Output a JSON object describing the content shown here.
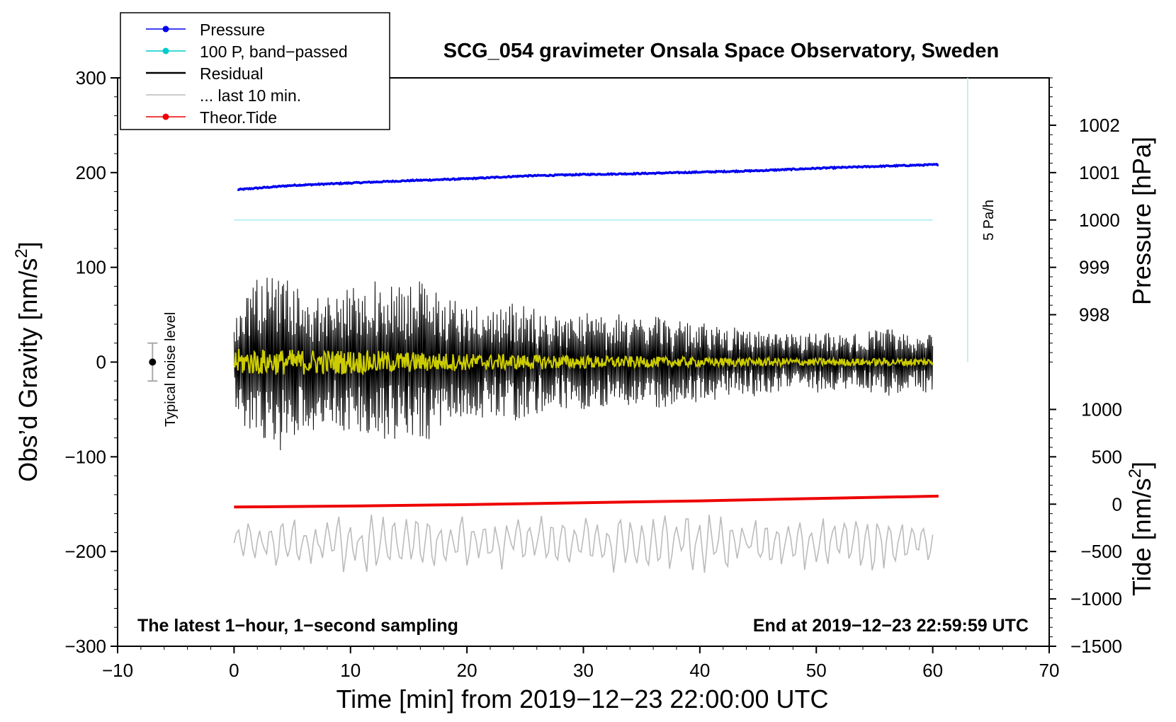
{
  "chart_data": {
    "type": "line",
    "title": "SCG_054 gravimeter Onsala Space Observatory, Sweden",
    "xlabel": "Time [min] from 2019−12−23 22:00:00 UTC",
    "ylabel": "Obs’d Gravity [nm/s",
    "ylabel_sup": "2",
    "ylabel_close": "]",
    "pressure_axis_label": "Pressure [hPa]",
    "tide_axis_label": "Tide [nm/s",
    "tide_axis_sup": "2",
    "tide_axis_close": "]",
    "xlim": [
      -10,
      70
    ],
    "ylim": [
      -300,
      300
    ],
    "x_ticks": [
      -10,
      0,
      10,
      20,
      30,
      40,
      50,
      60,
      70
    ],
    "x_tick_labels": [
      "−10",
      "0",
      "10",
      "20",
      "30",
      "40",
      "50",
      "60",
      "70"
    ],
    "y_ticks": [
      300,
      200,
      100,
      0,
      -100,
      -200,
      -300
    ],
    "y_tick_labels": [
      "300",
      "200",
      "100",
      "0",
      "−100",
      "−200",
      "−300"
    ],
    "pressure_ticks": [
      1002,
      1001,
      1000,
      999,
      998
    ],
    "pressure_tick_labels": [
      "1002",
      "1001",
      "1000",
      "999",
      "998"
    ],
    "pressure_axis_map": {
      "ref_value": 1000,
      "ref_gravity": 150,
      "gravity_per_hpa": 50
    },
    "tide_ticks": [
      1000,
      500,
      0,
      -500,
      -1000,
      -1500
    ],
    "tide_tick_labels": [
      "1000",
      "500",
      "0",
      "−500",
      "−1000",
      "−1500"
    ],
    "tide_axis_map": {
      "ref_value": 0,
      "ref_gravity": -150,
      "gravity_per_nms2": 0.1
    },
    "bottom_left_note": "The latest 1−hour, 1−second sampling",
    "bottom_right_note": "End at 2019−12−23 22:59:59 UTC",
    "noise_label": "Typical noise level",
    "noise_marker": {
      "x": -7,
      "y": 0,
      "err": 20
    },
    "scale_bar": {
      "label": "5 Pa/h",
      "x": 63,
      "y_from": 0,
      "y_to": 300
    },
    "legend": {
      "position": "top-left",
      "entries": [
        {
          "label": "Pressure",
          "color": "#0000ee",
          "marker": true
        },
        {
          "label": "100 P, band−passed",
          "color": "#00cccc",
          "marker": true
        },
        {
          "label": "Residual",
          "color": "#000000",
          "marker": false
        },
        {
          "label": "... last 10 min.",
          "color": "#bbbbbb",
          "marker": false
        },
        {
          "label": "Theor.Tide",
          "color": "#ee0000",
          "marker": true
        }
      ]
    },
    "series": [
      {
        "name": "Pressure",
        "color": "#0000ee",
        "y_axis": "pressure_hPa",
        "x": [
          0.3,
          5,
          10,
          15,
          20,
          25,
          30,
          35,
          40,
          45,
          50,
          55,
          60.5
        ],
        "values": [
          1000.64,
          1000.73,
          1000.78,
          1000.83,
          1000.87,
          1000.93,
          1000.96,
          1000.98,
          1001.01,
          1001.04,
          1001.09,
          1001.13,
          1001.17
        ]
      },
      {
        "name": "100 P, band−passed",
        "color": "#aaeeee",
        "y_axis": "gravity",
        "x": [
          0,
          60
        ],
        "values": [
          150,
          150
        ]
      },
      {
        "name": "Residual",
        "color": "#000000",
        "y_axis": "gravity",
        "x": [
          0,
          60
        ],
        "envelope_x": [
          0,
          2,
          4,
          6,
          8,
          10,
          12,
          14,
          16,
          18,
          20,
          22,
          24,
          26,
          28,
          30,
          32,
          34,
          36,
          38,
          40,
          42,
          44,
          46,
          48,
          50,
          52,
          54,
          56,
          58,
          60
        ],
        "envelope_amplitude": [
          50,
          95,
          98,
          72,
          70,
          78,
          85,
          82,
          88,
          72,
          62,
          60,
          62,
          55,
          50,
          52,
          48,
          48,
          55,
          42,
          40,
          38,
          35,
          30,
          30,
          32,
          28,
          30,
          35,
          32,
          30
        ]
      },
      {
        "name": "Seismic-filtered residual",
        "color": "#cccc00",
        "y_axis": "gravity",
        "x": [
          0,
          60
        ],
        "envelope_x": [
          0,
          10,
          20,
          30,
          40,
          50,
          60
        ],
        "envelope_amplitude": [
          14,
          13,
          9,
          7,
          5,
          4,
          4
        ]
      },
      {
        "name": "Theor.Tide",
        "color": "#ee0000",
        "y_axis": "tide",
        "x": [
          0,
          10,
          20,
          30,
          40,
          50,
          60.5
        ],
        "values": [
          -30,
          -20,
          -5,
          15,
          35,
          60,
          85
        ]
      },
      {
        "name": "... last 10 min.",
        "color": "#bbbbbb",
        "y_axis": "gravity",
        "x_range": [
          0,
          60
        ],
        "center": -190,
        "amplitude": 28
      }
    ]
  }
}
